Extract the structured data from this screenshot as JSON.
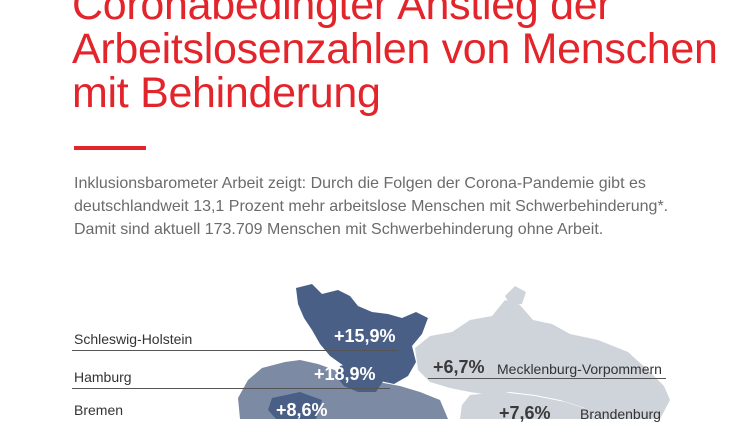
{
  "title": "Coronabedingter Anstieg der Arbeitslosenzahlen von Menschen mit Behinderung",
  "lead": "Inklusionsbarometer Arbeit zeigt: Durch die Folgen der Corona-Pandemie gibt es deutschlandweit 13,1 Prozent mehr arbeitslose Menschen mit Schwerbehinderung*. Damit sind aktuell 173.709 Menschen mit Schwerbehinderung ohne Arbeit.",
  "colors": {
    "accent": "#e3242b",
    "text": "#6b6b6b",
    "state_dark": "#4a5f86",
    "state_mid": "#7d8aa3",
    "state_light": "#cfd3da"
  },
  "regions": [
    {
      "name": "Schleswig-Holstein",
      "change": "+15,9%"
    },
    {
      "name": "Hamburg",
      "change": "+18,9%"
    },
    {
      "name": "Bremen",
      "change": "+8,6%"
    },
    {
      "name": "Mecklenburg-Vorpommern",
      "change": "+6,7%"
    },
    {
      "name": "Brandenburg",
      "change": "+7,6%"
    }
  ]
}
